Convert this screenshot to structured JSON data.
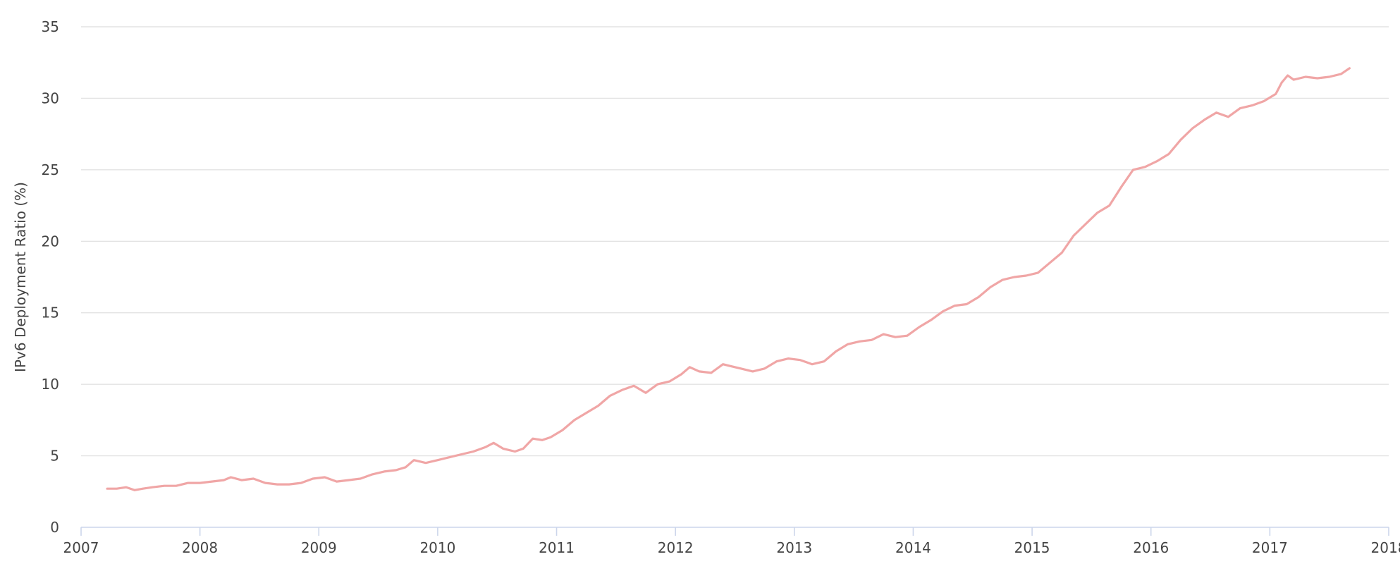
{
  "chart_data": {
    "type": "line",
    "title": "",
    "xlabel": "",
    "ylabel": "IPv6 Deployment Ratio (%)",
    "xlim": [
      2007,
      2018
    ],
    "ylim": [
      0,
      35
    ],
    "x_ticks": [
      "2007",
      "2008",
      "2009",
      "2010",
      "2011",
      "2012",
      "2013",
      "2014",
      "2015",
      "2016",
      "2017",
      "2018"
    ],
    "y_ticks": [
      "0",
      "5",
      "10",
      "15",
      "20",
      "25",
      "30",
      "35"
    ],
    "grid": true,
    "legend": "none",
    "colors": {
      "series": "#f0a6a6",
      "grid": "#e3e3e3",
      "axis": "#ccd6eb",
      "text": "#444444"
    },
    "series": [
      {
        "x": [
          2007.22,
          2007.3,
          2007.38,
          2007.45,
          2007.52,
          2007.6,
          2007.7,
          2007.8,
          2007.9,
          2008.0,
          2008.1,
          2008.2,
          2008.26,
          2008.35,
          2008.45,
          2008.55,
          2008.65,
          2008.75,
          2008.85,
          2008.95,
          2009.05,
          2009.15,
          2009.25,
          2009.35,
          2009.45,
          2009.55,
          2009.65,
          2009.73,
          2009.8,
          2009.9,
          2010.0,
          2010.1,
          2010.2,
          2010.3,
          2010.4,
          2010.47,
          2010.55,
          2010.65,
          2010.72,
          2010.8,
          2010.88,
          2010.95,
          2011.05,
          2011.15,
          2011.25,
          2011.35,
          2011.45,
          2011.55,
          2011.65,
          2011.75,
          2011.85,
          2011.95,
          2012.05,
          2012.12,
          2012.2,
          2012.3,
          2012.4,
          2012.45,
          2012.55,
          2012.65,
          2012.75,
          2012.85,
          2012.95,
          2013.05,
          2013.15,
          2013.25,
          2013.35,
          2013.45,
          2013.55,
          2013.65,
          2013.75,
          2013.85,
          2013.95,
          2014.05,
          2014.15,
          2014.25,
          2014.35,
          2014.45,
          2014.55,
          2014.65,
          2014.75,
          2014.85,
          2014.95,
          2015.05,
          2015.15,
          2015.25,
          2015.35,
          2015.45,
          2015.55,
          2015.65,
          2015.75,
          2015.85,
          2015.95,
          2016.05,
          2016.15,
          2016.25,
          2016.35,
          2016.45,
          2016.55,
          2016.65,
          2016.75,
          2016.85,
          2016.95,
          2017.05,
          2017.1,
          2017.15,
          2017.2,
          2017.3,
          2017.4,
          2017.5,
          2017.6,
          2017.67
        ],
        "values": [
          2.7,
          2.7,
          2.8,
          2.6,
          2.7,
          2.8,
          2.9,
          2.9,
          3.1,
          3.1,
          3.2,
          3.3,
          3.5,
          3.3,
          3.4,
          3.1,
          3.0,
          3.0,
          3.1,
          3.4,
          3.5,
          3.2,
          3.3,
          3.4,
          3.7,
          3.9,
          4.0,
          4.2,
          4.7,
          4.5,
          4.7,
          4.9,
          5.1,
          5.3,
          5.6,
          5.9,
          5.5,
          5.3,
          5.5,
          6.2,
          6.1,
          6.3,
          6.8,
          7.5,
          8.0,
          8.5,
          9.2,
          9.6,
          9.9,
          9.4,
          10.0,
          10.2,
          10.7,
          11.2,
          10.9,
          10.8,
          11.4,
          11.3,
          11.1,
          10.9,
          11.1,
          11.6,
          11.8,
          11.7,
          11.4,
          11.6,
          12.3,
          12.8,
          13.0,
          13.1,
          13.5,
          13.3,
          13.4,
          14.0,
          14.5,
          15.1,
          15.5,
          15.6,
          16.1,
          16.8,
          17.3,
          17.5,
          17.6,
          17.8,
          18.5,
          19.2,
          20.4,
          21.2,
          22.0,
          22.5,
          23.8,
          25.0,
          25.2,
          25.6,
          26.1,
          27.1,
          27.9,
          28.5,
          29.0,
          28.7,
          29.3,
          29.5,
          29.8,
          30.3,
          31.1,
          31.6,
          31.3,
          31.5,
          31.4,
          31.5,
          31.7,
          32.1
        ]
      }
    ]
  }
}
